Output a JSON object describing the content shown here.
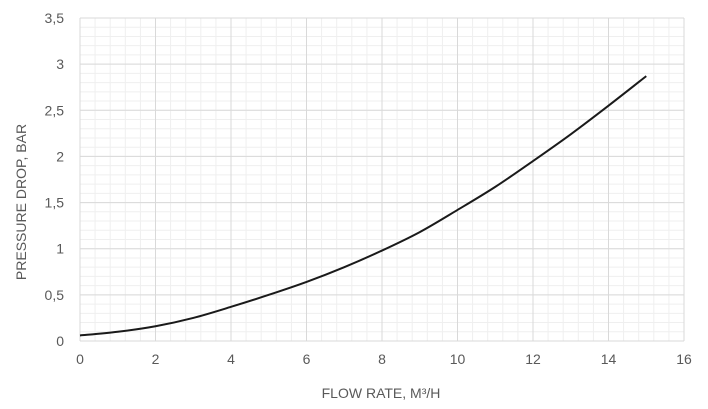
{
  "chart_data": {
    "type": "line",
    "xlabel": "FLOW RATE, M³/H",
    "ylabel": "PRESSURE DROP, BAR",
    "xlim": [
      0,
      16
    ],
    "ylim": [
      0,
      3.5
    ],
    "x_ticks": [
      "0",
      "2",
      "4",
      "6",
      "8",
      "10",
      "12",
      "14",
      "16"
    ],
    "y_ticks": [
      "0",
      "0,5",
      "1",
      "1,5",
      "2",
      "2,5",
      "3",
      "3,5"
    ],
    "grid": true,
    "legend": "none",
    "series": [
      {
        "color": "#1a1a1a",
        "x": [
          0,
          1,
          2,
          3,
          4,
          5,
          6,
          7,
          8,
          9,
          10,
          11,
          12,
          13,
          14,
          15
        ],
        "y": [
          0.06,
          0.1,
          0.16,
          0.25,
          0.37,
          0.5,
          0.64,
          0.8,
          0.98,
          1.18,
          1.42,
          1.67,
          1.95,
          2.24,
          2.55,
          2.87
        ]
      }
    ]
  }
}
